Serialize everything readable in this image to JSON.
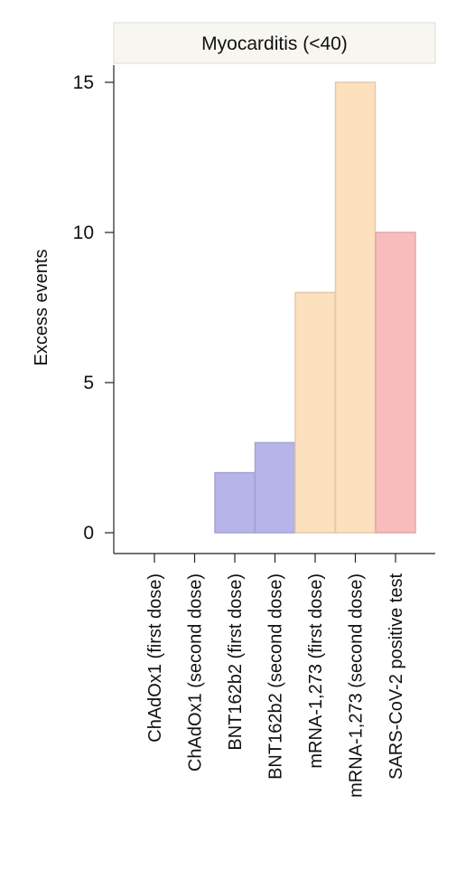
{
  "chart_data": {
    "type": "bar",
    "title": "Myocarditis (<40)",
    "ylabel": "Excess events",
    "xlabel": "",
    "ylim": [
      0,
      16
    ],
    "yticks": [
      0,
      5,
      10,
      15
    ],
    "categories": [
      "ChAdOx1 (first dose)",
      "ChAdOx1 (second dose)",
      "BNT162b2 (first dose)",
      "BNT162b2 (second dose)",
      "mRNA-1,273 (first dose)",
      "mRNA-1,273 (second dose)",
      "SARS-CoV-2 positive test"
    ],
    "values": [
      0,
      0,
      2,
      3,
      8,
      15,
      10
    ],
    "colors": [
      "#b7b4ea",
      "#b7b4ea",
      "#b7b4ea",
      "#b7b4ea",
      "#fde0bd",
      "#fde0bd",
      "#f9bcbc"
    ],
    "grid": false,
    "legend": "none"
  }
}
